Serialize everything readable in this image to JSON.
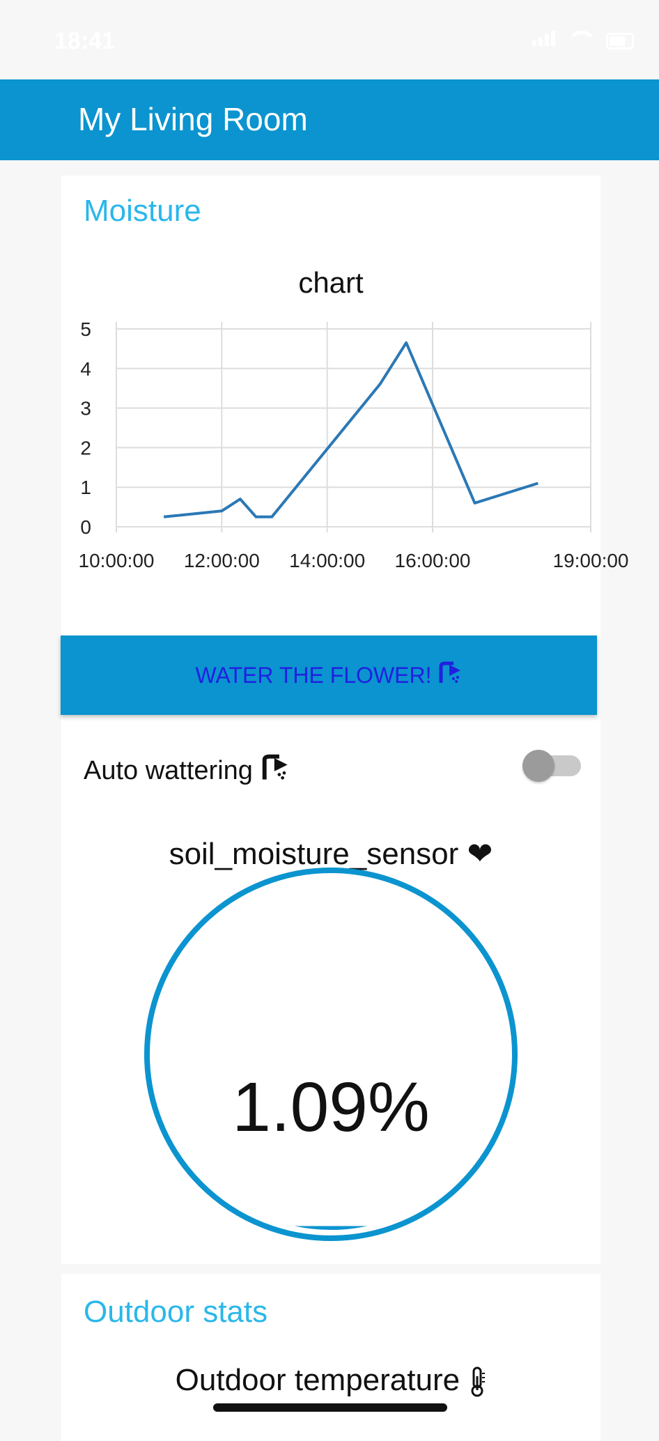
{
  "status_bar": {
    "time": "18:41"
  },
  "app_bar": {
    "title": "My Living Room"
  },
  "moisture_card": {
    "title": "Moisture",
    "water_button_label": "WATER THE FLOWER!",
    "auto_watering_label": "Auto wattering",
    "auto_watering_enabled": false,
    "gauge_label": "soil_moisture_sensor",
    "gauge_value": "1.09%",
    "gauge_level_percent": 1.09
  },
  "chart_data": {
    "type": "line",
    "title": "chart",
    "xlabel": "",
    "ylabel": "",
    "ylim": [
      0,
      5
    ],
    "yticks": [
      "0",
      "1",
      "2",
      "3",
      "4",
      "5"
    ],
    "xticks": [
      {
        "label": "10:00:00",
        "hour": 10
      },
      {
        "label": "12:00:00",
        "hour": 12
      },
      {
        "label": "14:00:00",
        "hour": 14
      },
      {
        "label": "16:00:00",
        "hour": 16
      },
      {
        "label": "19:00:00",
        "hour": 19
      }
    ],
    "grid": true,
    "legend": "none",
    "series": [
      {
        "color": "#2b78b5",
        "x_hours": [
          10.9,
          12.0,
          12.35,
          12.65,
          12.95,
          15.0,
          15.5,
          16.8,
          18.0
        ],
        "values": [
          0.25,
          0.4,
          0.7,
          0.25,
          0.25,
          3.6,
          4.65,
          0.6,
          1.1
        ]
      }
    ]
  },
  "outdoor_card": {
    "title": "Outdoor stats",
    "temperature_label": "Outdoor temperature"
  },
  "colors": {
    "primary": "#0b94cf",
    "accent_title": "#2ab7ea",
    "button_text": "#2020e0"
  }
}
